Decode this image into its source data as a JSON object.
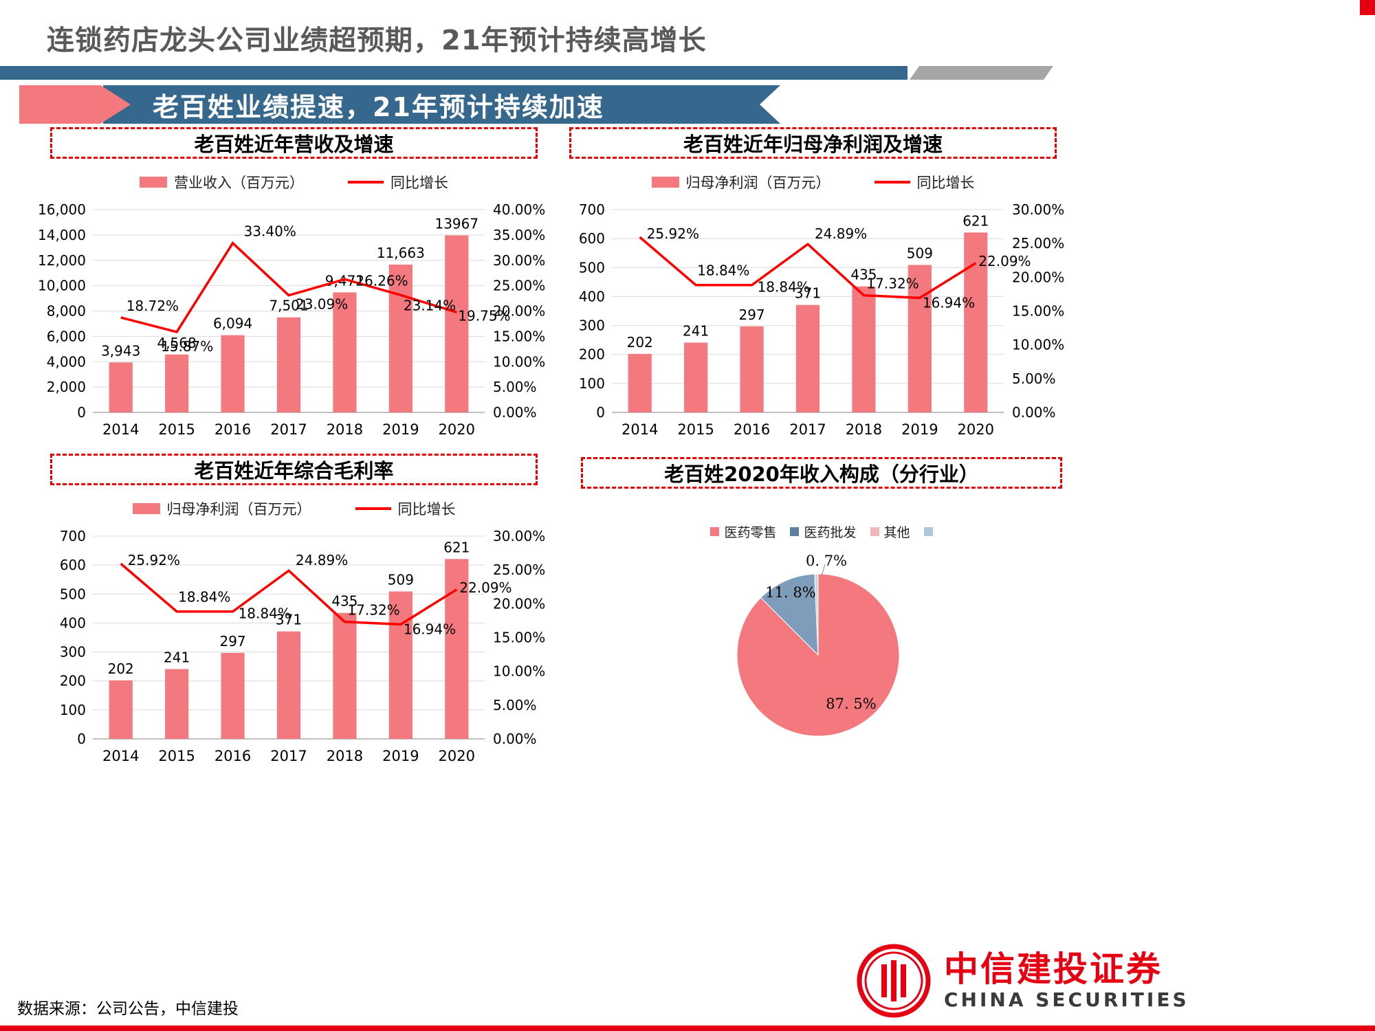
{
  "page": {
    "header_title": "连锁药店龙头公司业绩超预期，21年预计持续高增长",
    "banner_title": "老百姓业绩提速，21年预计持续加速",
    "footer_source": "数据来源：公司公告，中信建投",
    "logo_cn": "中信建投证券",
    "logo_en": "CHINA SECURITIES"
  },
  "colors": {
    "bar": "#F4797E",
    "line": "#FF0000",
    "banner_blue": "#36678D",
    "accent_red": "#E60012",
    "gray": "#A6A6A6",
    "pie_wholesale": "#7E9DBB",
    "pie_other": "#C9D6E4",
    "legend_wholesale": "#5E7F9E",
    "legend_other": "#F2B6BA",
    "legend_extra": "#AFC7DA"
  },
  "chart_data": [
    {
      "id": "revenue-growth",
      "type": "bar+line",
      "title": "老百姓近年营收及增速",
      "legend": [
        "营业收入（百万元）",
        "同比增长"
      ],
      "categories": [
        "2014",
        "2015",
        "2016",
        "2017",
        "2018",
        "2019",
        "2020"
      ],
      "bar_values": [
        3943,
        4568,
        6094,
        7501,
        9471,
        11663,
        13967
      ],
      "bar_labels": [
        "3,943",
        "4,568",
        "6,094",
        "7,501",
        "9,471",
        "11,663",
        "13967"
      ],
      "line_values": [
        18.72,
        15.87,
        33.4,
        23.09,
        26.26,
        23.14,
        19.75
      ],
      "line_labels": [
        "18.72%",
        "15.87%",
        "33.40%",
        "23.09%",
        "26.26%",
        "23.14%",
        "19.75%"
      ],
      "left_axis": {
        "min": 0,
        "max": 16000,
        "step": 2000
      },
      "right_axis": {
        "min": 0,
        "max": 40,
        "step": 5
      },
      "grid": true,
      "legend_position": "top"
    },
    {
      "id": "net-profit-growth",
      "type": "bar+line",
      "title": "老百姓近年归母净利润及增速",
      "legend": [
        "归母净利润（百万元）",
        "同比增长"
      ],
      "categories": [
        "2014",
        "2015",
        "2016",
        "2017",
        "2018",
        "2019",
        "2020"
      ],
      "bar_values": [
        202,
        241,
        297,
        371,
        435,
        509,
        621
      ],
      "bar_labels": [
        "202",
        "241",
        "297",
        "371",
        "435",
        "509",
        "621"
      ],
      "line_values": [
        25.92,
        18.84,
        18.84,
        24.89,
        17.32,
        16.94,
        22.09
      ],
      "line_labels": [
        "25.92%",
        "18.84%",
        "18.84%",
        "24.89%",
        "17.32%",
        "16.94%",
        "22.09%"
      ],
      "left_axis": {
        "min": 0,
        "max": 700,
        "step": 100
      },
      "right_axis": {
        "min": 0,
        "max": 30,
        "step": 5
      },
      "grid": true,
      "legend_position": "top"
    },
    {
      "id": "gross-margin-panel",
      "type": "bar+line",
      "title": "老百姓近年综合毛利率",
      "legend": [
        "归母净利润（百万元）",
        "同比增长"
      ],
      "categories": [
        "2014",
        "2015",
        "2016",
        "2017",
        "2018",
        "2019",
        "2020"
      ],
      "bar_values": [
        202,
        241,
        297,
        371,
        435,
        509,
        621
      ],
      "bar_labels": [
        "202",
        "241",
        "297",
        "371",
        "435",
        "509",
        "621"
      ],
      "line_values": [
        25.92,
        18.84,
        18.84,
        24.89,
        17.32,
        16.94,
        22.09
      ],
      "line_labels": [
        "25.92%",
        "18.84%",
        "18.84%",
        "24.89%",
        "17.32%",
        "16.94%",
        "22.09%"
      ],
      "left_axis": {
        "min": 0,
        "max": 700,
        "step": 100
      },
      "right_axis": {
        "min": 0,
        "max": 30,
        "step": 5
      },
      "grid": true,
      "legend_position": "top"
    },
    {
      "id": "revenue-mix-2020",
      "type": "pie",
      "title": "老百姓2020年收入构成（分行业）",
      "legend": [
        "医药零售",
        "医药批发",
        "其他"
      ],
      "slices": [
        {
          "label": "医药零售",
          "value": 87.5,
          "text": "87. 5%"
        },
        {
          "label": "医药批发",
          "value": 11.8,
          "text": "11. 8%"
        },
        {
          "label": "其他",
          "value": 0.7,
          "text": "0. 7%"
        }
      ]
    }
  ]
}
